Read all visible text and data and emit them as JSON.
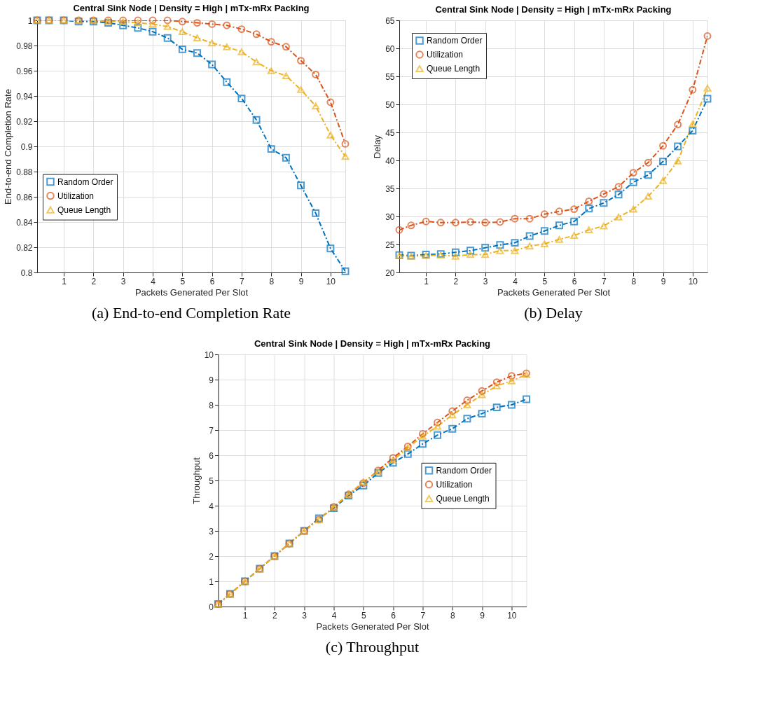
{
  "chart_data": [
    {
      "type": "line",
      "title": "Central Sink Node | Density = High | mTx-mRx Packing",
      "xlabel": "Packets Generated Per Slot",
      "ylabel": "End-to-end Completion Rate",
      "annotations": [
        "(a) End-to-end Completion Rate"
      ],
      "x": [
        0.1,
        0.5,
        1,
        1.5,
        2,
        2.5,
        3,
        3.5,
        4,
        4.5,
        5,
        5.5,
        6,
        6.5,
        7,
        7.5,
        8,
        8.5,
        9,
        9.5,
        10,
        10.5
      ],
      "xlim": [
        0.1,
        10.5
      ],
      "xticks": [
        1,
        2,
        3,
        4,
        5,
        6,
        7,
        8,
        9,
        10
      ],
      "ylim": [
        0.8,
        1
      ],
      "yticks": [
        0.8,
        0.82,
        0.84,
        0.86,
        0.88,
        0.9,
        0.92,
        0.94,
        0.96,
        0.98,
        1
      ],
      "grid": true,
      "legend": "bottom left",
      "line_style": "dashed",
      "series": [
        {
          "name": "Random Order",
          "color": "#0072bd",
          "marker": "square",
          "values": [
            1,
            1,
            1,
            0.999,
            0.999,
            0.998,
            0.996,
            0.994,
            0.991,
            0.986,
            0.977,
            0.974,
            0.965,
            0.951,
            0.938,
            0.921,
            0.898,
            0.891,
            0.869,
            0.847,
            0.819,
            0.801
          ]
        },
        {
          "name": "Utilization",
          "color": "#d95319",
          "marker": "circle",
          "values": [
            1,
            1,
            1,
            1,
            1,
            1,
            1,
            1,
            1,
            1,
            0.999,
            0.998,
            0.997,
            0.996,
            0.993,
            0.989,
            0.983,
            0.979,
            0.968,
            0.957,
            0.935,
            0.902
          ]
        },
        {
          "name": "Queue Length",
          "color": "#edb120",
          "marker": "triangle",
          "values": [
            1,
            1,
            1,
            1,
            1,
            0.999,
            0.999,
            0.998,
            0.997,
            0.995,
            0.991,
            0.986,
            0.982,
            0.979,
            0.975,
            0.967,
            0.96,
            0.956,
            0.945,
            0.932,
            0.909,
            0.892
          ]
        }
      ]
    },
    {
      "type": "line",
      "title": "Central Sink Node | Density = High | mTx-mRx Packing",
      "xlabel": "Packets Generated Per Slot",
      "ylabel": "Delay",
      "annotations": [
        "(b) Delay"
      ],
      "x": [
        0.1,
        0.5,
        1,
        1.5,
        2,
        2.5,
        3,
        3.5,
        4,
        4.5,
        5,
        5.5,
        6,
        6.5,
        7,
        7.5,
        8,
        8.5,
        9,
        9.5,
        10,
        10.5
      ],
      "xlim": [
        0.1,
        10.5
      ],
      "xticks": [
        1,
        2,
        3,
        4,
        5,
        6,
        7,
        8,
        9,
        10
      ],
      "ylim": [
        20,
        65
      ],
      "yticks": [
        20,
        25,
        30,
        35,
        40,
        45,
        50,
        55,
        60,
        65
      ],
      "grid": true,
      "legend": "top left",
      "line_style": "dashed",
      "series": [
        {
          "name": "Random Order",
          "color": "#0072bd",
          "marker": "square",
          "values": [
            23.1,
            23.0,
            23.2,
            23.3,
            23.6,
            23.9,
            24.4,
            24.9,
            25.3,
            26.5,
            27.4,
            28.4,
            29.1,
            31.4,
            32.4,
            33.9,
            36.1,
            37.4,
            39.8,
            42.5,
            45.3,
            51.0
          ]
        },
        {
          "name": "Utilization",
          "color": "#d95319",
          "marker": "circle",
          "values": [
            27.6,
            28.4,
            29.1,
            28.9,
            28.9,
            29.0,
            28.9,
            29.0,
            29.6,
            29.6,
            30.4,
            30.9,
            31.3,
            32.7,
            34.0,
            35.3,
            37.8,
            39.6,
            42.6,
            46.4,
            52.6,
            62.2
          ]
        },
        {
          "name": "Queue Length",
          "color": "#edb120",
          "marker": "triangle",
          "values": [
            23.0,
            22.9,
            23.0,
            23.1,
            22.9,
            23.2,
            23.2,
            23.9,
            23.9,
            24.7,
            25.1,
            25.9,
            26.6,
            27.6,
            28.3,
            29.9,
            31.3,
            33.6,
            36.4,
            39.9,
            46.5,
            52.9
          ]
        }
      ]
    },
    {
      "type": "line",
      "title": "Central Sink Node | Density = High | mTx-mRx Packing",
      "xlabel": "Packets Generated Per Slot",
      "ylabel": "Throughput",
      "annotations": [
        "(c) Throughput"
      ],
      "x": [
        0.1,
        0.5,
        1,
        1.5,
        2,
        2.5,
        3,
        3.5,
        4,
        4.5,
        5,
        5.5,
        6,
        6.5,
        7,
        7.5,
        8,
        8.5,
        9,
        9.5,
        10,
        10.5
      ],
      "xlim": [
        0.1,
        10.5
      ],
      "xticks": [
        1,
        2,
        3,
        4,
        5,
        6,
        7,
        8,
        9,
        10
      ],
      "ylim": [
        0,
        10
      ],
      "yticks": [
        0,
        1,
        2,
        3,
        4,
        5,
        6,
        7,
        8,
        9,
        10
      ],
      "grid": true,
      "legend": "right",
      "line_style": "dashed",
      "series": [
        {
          "name": "Random Order",
          "color": "#0072bd",
          "marker": "square",
          "values": [
            0.1,
            0.5,
            1,
            1.5,
            2,
            2.5,
            3,
            3.5,
            3.9,
            4.4,
            4.8,
            5.3,
            5.7,
            6.05,
            6.45,
            6.8,
            7.05,
            7.45,
            7.65,
            7.9,
            8.0,
            8.22
          ]
        },
        {
          "name": "Utilization",
          "color": "#d95319",
          "marker": "circle",
          "values": [
            0.1,
            0.5,
            1,
            1.5,
            2,
            2.5,
            3,
            3.45,
            3.95,
            4.45,
            4.9,
            5.4,
            5.9,
            6.35,
            6.85,
            7.3,
            7.75,
            8.18,
            8.55,
            8.9,
            9.15,
            9.25
          ]
        },
        {
          "name": "Queue Length",
          "color": "#edb120",
          "marker": "triangle",
          "values": [
            0.1,
            0.5,
            1,
            1.5,
            2,
            2.5,
            3,
            3.45,
            3.95,
            4.45,
            4.95,
            5.35,
            5.8,
            6.3,
            6.75,
            7.15,
            7.6,
            8.0,
            8.4,
            8.75,
            8.95,
            9.2
          ]
        }
      ]
    }
  ]
}
